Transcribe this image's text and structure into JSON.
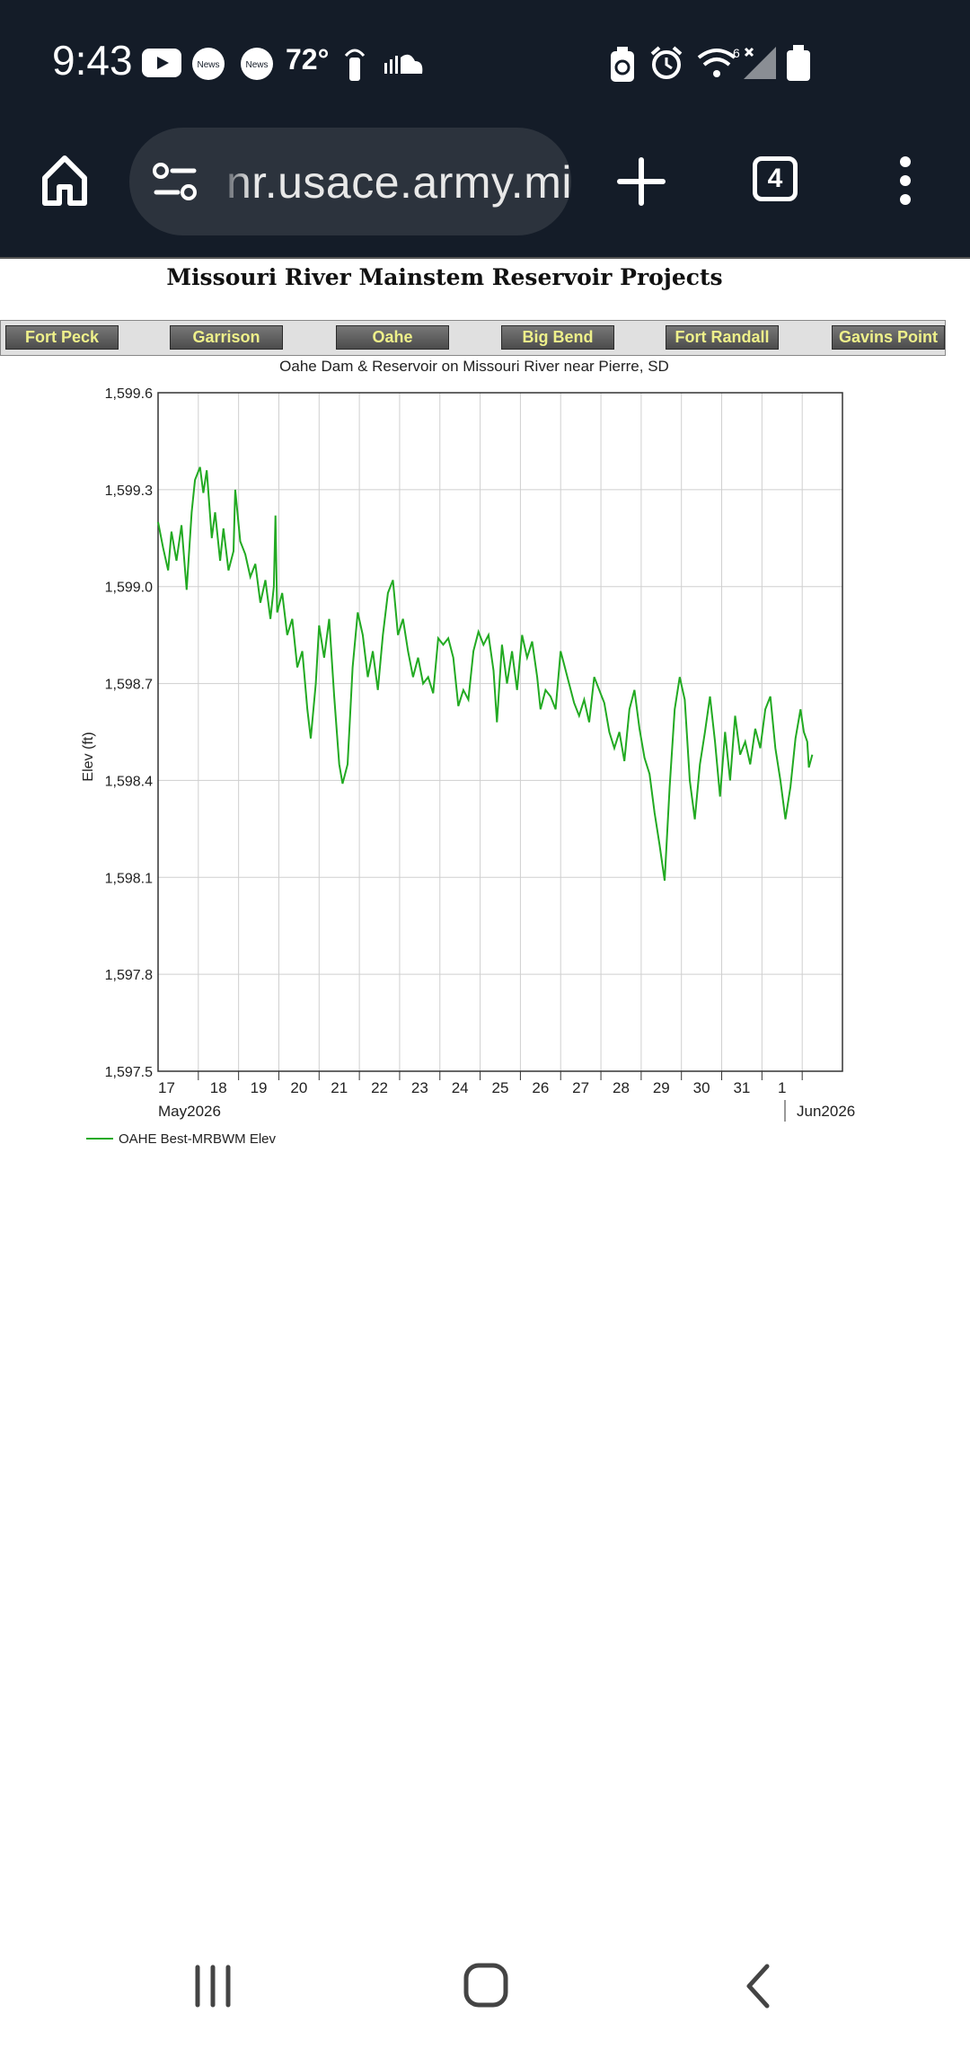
{
  "status_bar": {
    "time": "9:43",
    "temperature": "72°",
    "notification_badge_1": "News",
    "notification_badge_2": "News",
    "signal_label": "6",
    "icons": [
      "youtube-icon",
      "news-icon",
      "news-icon",
      "hotspot-icon",
      "soundcloud-icon",
      "battery-saver-icon",
      "alarm-icon",
      "wifi-icon",
      "signal-icon",
      "battery-icon"
    ]
  },
  "browser": {
    "url": "nr.usace.army.mil",
    "tab_count": "4"
  },
  "page": {
    "title": "Missouri River Mainstem Reservoir Projects",
    "nav": [
      "Fort Peck",
      "Garrison",
      "Oahe",
      "Big Bend",
      "Fort Randall",
      "Gavins Point"
    ]
  },
  "chart_data": {
    "type": "line",
    "title": "Oahe Dam & Reservoir on Missouri River near Pierre, SD",
    "ylabel": "Elev (ft)",
    "ylim": [
      1597.5,
      1599.6
    ],
    "yticks": [
      "1,599.6",
      "1,599.3",
      "1,599.0",
      "1,598.7",
      "1,598.4",
      "1,598.1",
      "1,597.8",
      "1,597.5"
    ],
    "x_labels": [
      "17",
      "18",
      "19",
      "20",
      "21",
      "22",
      "23",
      "24",
      "25",
      "26",
      "27",
      "28",
      "29",
      "30",
      "31",
      "1"
    ],
    "x_month_labels": [
      "May2026",
      "Jun2026"
    ],
    "xlim": [
      "2026-05-17",
      "2026-06-02"
    ],
    "grid": true,
    "legend_position": "bottom-left",
    "series_color": "#22aa22",
    "series": [
      {
        "name": "OAHE Best-MRBWM Elev",
        "points": [
          [
            "2026-05-17 00:00",
            1599.2
          ],
          [
            "2026-05-17 03:00",
            1599.12
          ],
          [
            "2026-05-17 06:00",
            1599.05
          ],
          [
            "2026-05-17 08:00",
            1599.17
          ],
          [
            "2026-05-17 11:00",
            1599.08
          ],
          [
            "2026-05-17 14:00",
            1599.19
          ],
          [
            "2026-05-17 17:00",
            1598.99
          ],
          [
            "2026-05-17 20:00",
            1599.23
          ],
          [
            "2026-05-17 22:00",
            1599.33
          ],
          [
            "2026-05-18 01:00",
            1599.37
          ],
          [
            "2026-05-18 03:00",
            1599.29
          ],
          [
            "2026-05-18 05:00",
            1599.36
          ],
          [
            "2026-05-18 08:00",
            1599.15
          ],
          [
            "2026-05-18 10:00",
            1599.23
          ],
          [
            "2026-05-18 13:00",
            1599.08
          ],
          [
            "2026-05-18 15:00",
            1599.18
          ],
          [
            "2026-05-18 18:00",
            1599.05
          ],
          [
            "2026-05-18 21:00",
            1599.11
          ],
          [
            "2026-05-18 22:00",
            1599.3
          ],
          [
            "2026-05-19 01:00",
            1599.14
          ],
          [
            "2026-05-19 04:00",
            1599.1
          ],
          [
            "2026-05-19 07:00",
            1599.03
          ],
          [
            "2026-05-19 10:00",
            1599.07
          ],
          [
            "2026-05-19 13:00",
            1598.95
          ],
          [
            "2026-05-19 16:00",
            1599.02
          ],
          [
            "2026-05-19 19:00",
            1598.9
          ],
          [
            "2026-05-19 21:00",
            1599.0
          ],
          [
            "2026-05-19 22:00",
            1599.22
          ],
          [
            "2026-05-19 23:00",
            1598.92
          ],
          [
            "2026-05-20 02:00",
            1598.98
          ],
          [
            "2026-05-20 05:00",
            1598.85
          ],
          [
            "2026-05-20 08:00",
            1598.9
          ],
          [
            "2026-05-20 11:00",
            1598.75
          ],
          [
            "2026-05-20 14:00",
            1598.8
          ],
          [
            "2026-05-20 17:00",
            1598.62
          ],
          [
            "2026-05-20 19:00",
            1598.53
          ],
          [
            "2026-05-20 22:00",
            1598.7
          ],
          [
            "2026-05-21 00:00",
            1598.88
          ],
          [
            "2026-05-21 03:00",
            1598.78
          ],
          [
            "2026-05-21 06:00",
            1598.9
          ],
          [
            "2026-05-21 09:00",
            1598.66
          ],
          [
            "2026-05-21 12:00",
            1598.45
          ],
          [
            "2026-05-21 14:00",
            1598.39
          ],
          [
            "2026-05-21 17:00",
            1598.45
          ],
          [
            "2026-05-21 20:00",
            1598.75
          ],
          [
            "2026-05-21 23:00",
            1598.92
          ],
          [
            "2026-05-22 02:00",
            1598.85
          ],
          [
            "2026-05-22 05:00",
            1598.72
          ],
          [
            "2026-05-22 08:00",
            1598.8
          ],
          [
            "2026-05-22 11:00",
            1598.68
          ],
          [
            "2026-05-22 14:00",
            1598.85
          ],
          [
            "2026-05-22 17:00",
            1598.98
          ],
          [
            "2026-05-22 20:00",
            1599.02
          ],
          [
            "2026-05-22 23:00",
            1598.85
          ],
          [
            "2026-05-23 02:00",
            1598.9
          ],
          [
            "2026-05-23 05:00",
            1598.8
          ],
          [
            "2026-05-23 08:00",
            1598.72
          ],
          [
            "2026-05-23 11:00",
            1598.78
          ],
          [
            "2026-05-23 14:00",
            1598.7
          ],
          [
            "2026-05-23 17:00",
            1598.72
          ],
          [
            "2026-05-23 20:00",
            1598.67
          ],
          [
            "2026-05-23 23:00",
            1598.84
          ],
          [
            "2026-05-24 02:00",
            1598.82
          ],
          [
            "2026-05-24 05:00",
            1598.84
          ],
          [
            "2026-05-24 08:00",
            1598.78
          ],
          [
            "2026-05-24 11:00",
            1598.63
          ],
          [
            "2026-05-24 14:00",
            1598.68
          ],
          [
            "2026-05-24 17:00",
            1598.65
          ],
          [
            "2026-05-24 20:00",
            1598.8
          ],
          [
            "2026-05-24 23:00",
            1598.86
          ],
          [
            "2026-05-25 02:00",
            1598.82
          ],
          [
            "2026-05-25 05:00",
            1598.85
          ],
          [
            "2026-05-25 08:00",
            1598.74
          ],
          [
            "2026-05-25 10:00",
            1598.58
          ],
          [
            "2026-05-25 13:00",
            1598.82
          ],
          [
            "2026-05-25 16:00",
            1598.7
          ],
          [
            "2026-05-25 19:00",
            1598.8
          ],
          [
            "2026-05-25 22:00",
            1598.68
          ],
          [
            "2026-05-26 01:00",
            1598.85
          ],
          [
            "2026-05-26 04:00",
            1598.78
          ],
          [
            "2026-05-26 07:00",
            1598.83
          ],
          [
            "2026-05-26 10:00",
            1598.72
          ],
          [
            "2026-05-26 12:00",
            1598.62
          ],
          [
            "2026-05-26 15:00",
            1598.68
          ],
          [
            "2026-05-26 18:00",
            1598.66
          ],
          [
            "2026-05-26 21:00",
            1598.62
          ],
          [
            "2026-05-27 00:00",
            1598.8
          ],
          [
            "2026-05-27 02:00",
            1598.76
          ],
          [
            "2026-05-27 05:00",
            1598.7
          ],
          [
            "2026-05-27 08:00",
            1598.64
          ],
          [
            "2026-05-27 11:00",
            1598.6
          ],
          [
            "2026-05-27 14:00",
            1598.65
          ],
          [
            "2026-05-27 17:00",
            1598.58
          ],
          [
            "2026-05-27 20:00",
            1598.72
          ],
          [
            "2026-05-27 23:00",
            1598.68
          ],
          [
            "2026-05-28 02:00",
            1598.64
          ],
          [
            "2026-05-28 05:00",
            1598.55
          ],
          [
            "2026-05-28 08:00",
            1598.5
          ],
          [
            "2026-05-28 11:00",
            1598.55
          ],
          [
            "2026-05-28 14:00",
            1598.46
          ],
          [
            "2026-05-28 17:00",
            1598.62
          ],
          [
            "2026-05-28 20:00",
            1598.68
          ],
          [
            "2026-05-28 23:00",
            1598.56
          ],
          [
            "2026-05-29 02:00",
            1598.47
          ],
          [
            "2026-05-29 05:00",
            1598.42
          ],
          [
            "2026-05-29 08:00",
            1598.3
          ],
          [
            "2026-05-29 11:00",
            1598.2
          ],
          [
            "2026-05-29 14:00",
            1598.09
          ],
          [
            "2026-05-29 17:00",
            1598.38
          ],
          [
            "2026-05-29 20:00",
            1598.62
          ],
          [
            "2026-05-29 23:00",
            1598.72
          ],
          [
            "2026-05-30 02:00",
            1598.65
          ],
          [
            "2026-05-30 05:00",
            1598.4
          ],
          [
            "2026-05-30 08:00",
            1598.28
          ],
          [
            "2026-05-30 11:00",
            1598.45
          ],
          [
            "2026-05-30 14:00",
            1598.55
          ],
          [
            "2026-05-30 17:00",
            1598.66
          ],
          [
            "2026-05-30 20:00",
            1598.52
          ],
          [
            "2026-05-30 23:00",
            1598.35
          ],
          [
            "2026-05-31 02:00",
            1598.55
          ],
          [
            "2026-05-31 05:00",
            1598.4
          ],
          [
            "2026-05-31 08:00",
            1598.6
          ],
          [
            "2026-05-31 11:00",
            1598.48
          ],
          [
            "2026-05-31 14:00",
            1598.52
          ],
          [
            "2026-05-31 17:00",
            1598.45
          ],
          [
            "2026-05-31 20:00",
            1598.56
          ],
          [
            "2026-05-31 23:00",
            1598.5
          ],
          [
            "2026-06-01 02:00",
            1598.62
          ],
          [
            "2026-06-01 05:00",
            1598.66
          ],
          [
            "2026-06-01 08:00",
            1598.5
          ],
          [
            "2026-06-01 11:00",
            1598.4
          ],
          [
            "2026-06-01 14:00",
            1598.28
          ],
          [
            "2026-06-01 17:00",
            1598.38
          ],
          [
            "2026-06-01 20:00",
            1598.53
          ],
          [
            "2026-06-01 23:00",
            1598.62
          ],
          [
            "2026-06-02 01:00",
            1598.55
          ],
          [
            "2026-06-02 03:00",
            1598.52
          ],
          [
            "2026-06-02 04:00",
            1598.44
          ],
          [
            "2026-06-02 06:00",
            1598.48
          ]
        ]
      }
    ]
  }
}
